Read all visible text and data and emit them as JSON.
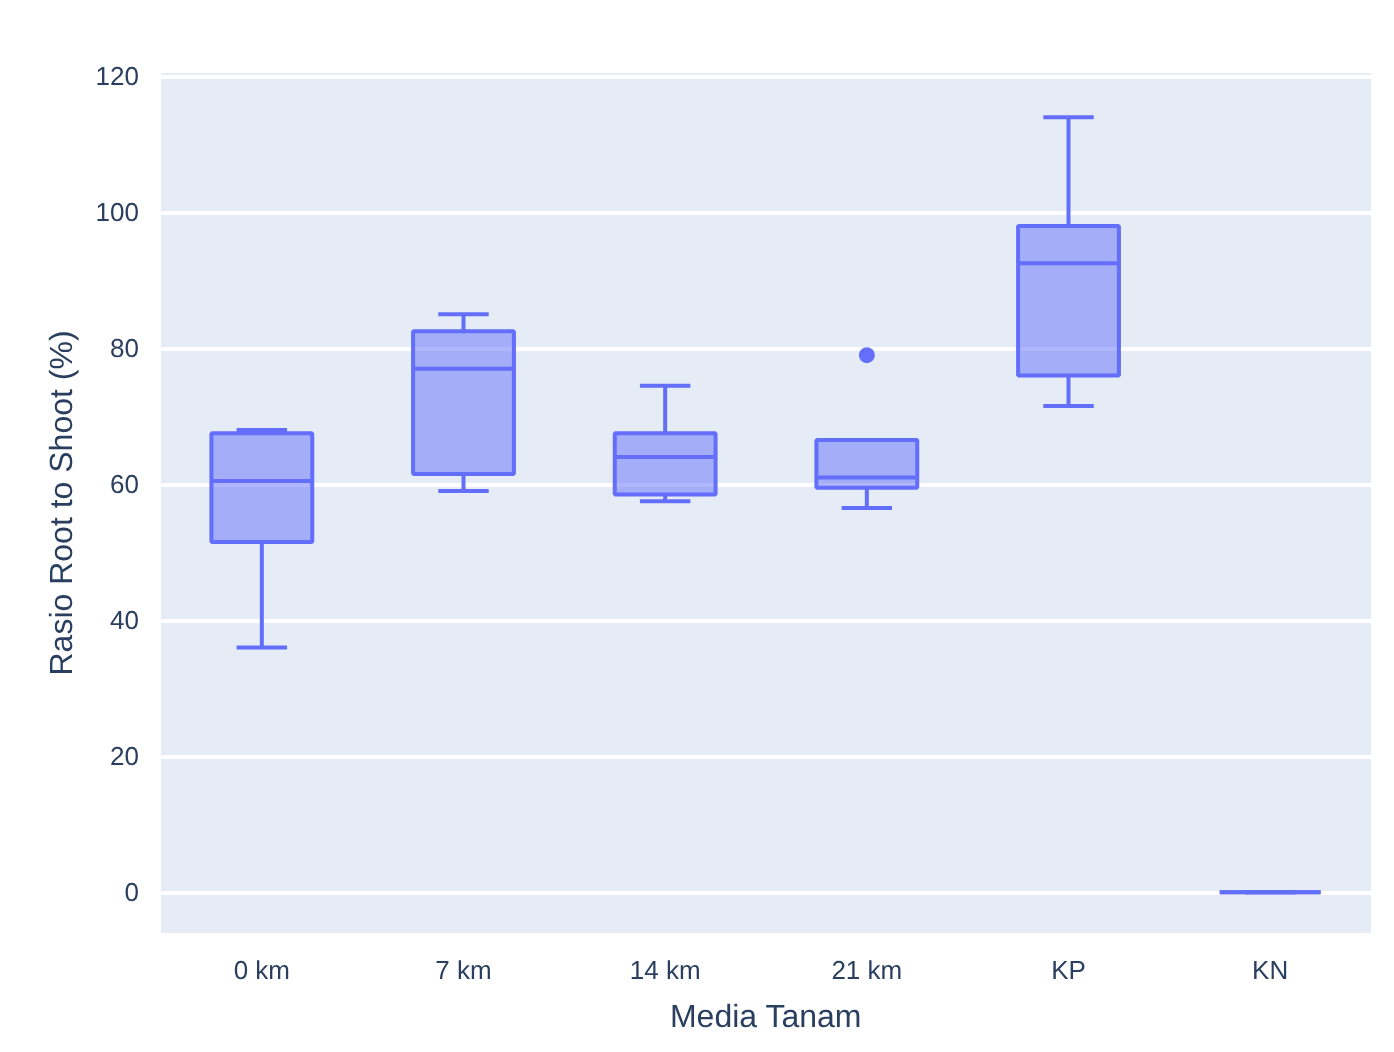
{
  "chart_data": {
    "type": "box",
    "xlabel": "Media Tanam",
    "ylabel": "Rasio Root to Shoot (%)",
    "categories": [
      "0 km",
      "7 km",
      "14 km",
      "21 km",
      "KP",
      "KN"
    ],
    "color": "#636efa",
    "boxes": [
      {
        "low": 36,
        "q1": 51.5,
        "median": 60.5,
        "q3": 67.5,
        "high": 68
      },
      {
        "low": 59,
        "q1": 61.5,
        "median": 77,
        "q3": 82.5,
        "high": 85
      },
      {
        "low": 57.5,
        "q1": 58.5,
        "median": 64,
        "q3": 67.5,
        "high": 74.5
      },
      {
        "low": 56.5,
        "q1": 59.5,
        "median": 61,
        "q3": 66.5,
        "high": 66.5,
        "outliers": [
          79
        ]
      },
      {
        "low": 71.5,
        "q1": 76,
        "median": 92.5,
        "q3": 98,
        "high": 114
      },
      {
        "low": 0,
        "q1": 0,
        "median": 0,
        "q3": 0,
        "high": 0
      }
    ],
    "ylim": [
      -6,
      120.5
    ],
    "yticks": [
      0,
      20,
      40,
      60,
      80,
      100,
      120
    ],
    "grid": "y"
  }
}
